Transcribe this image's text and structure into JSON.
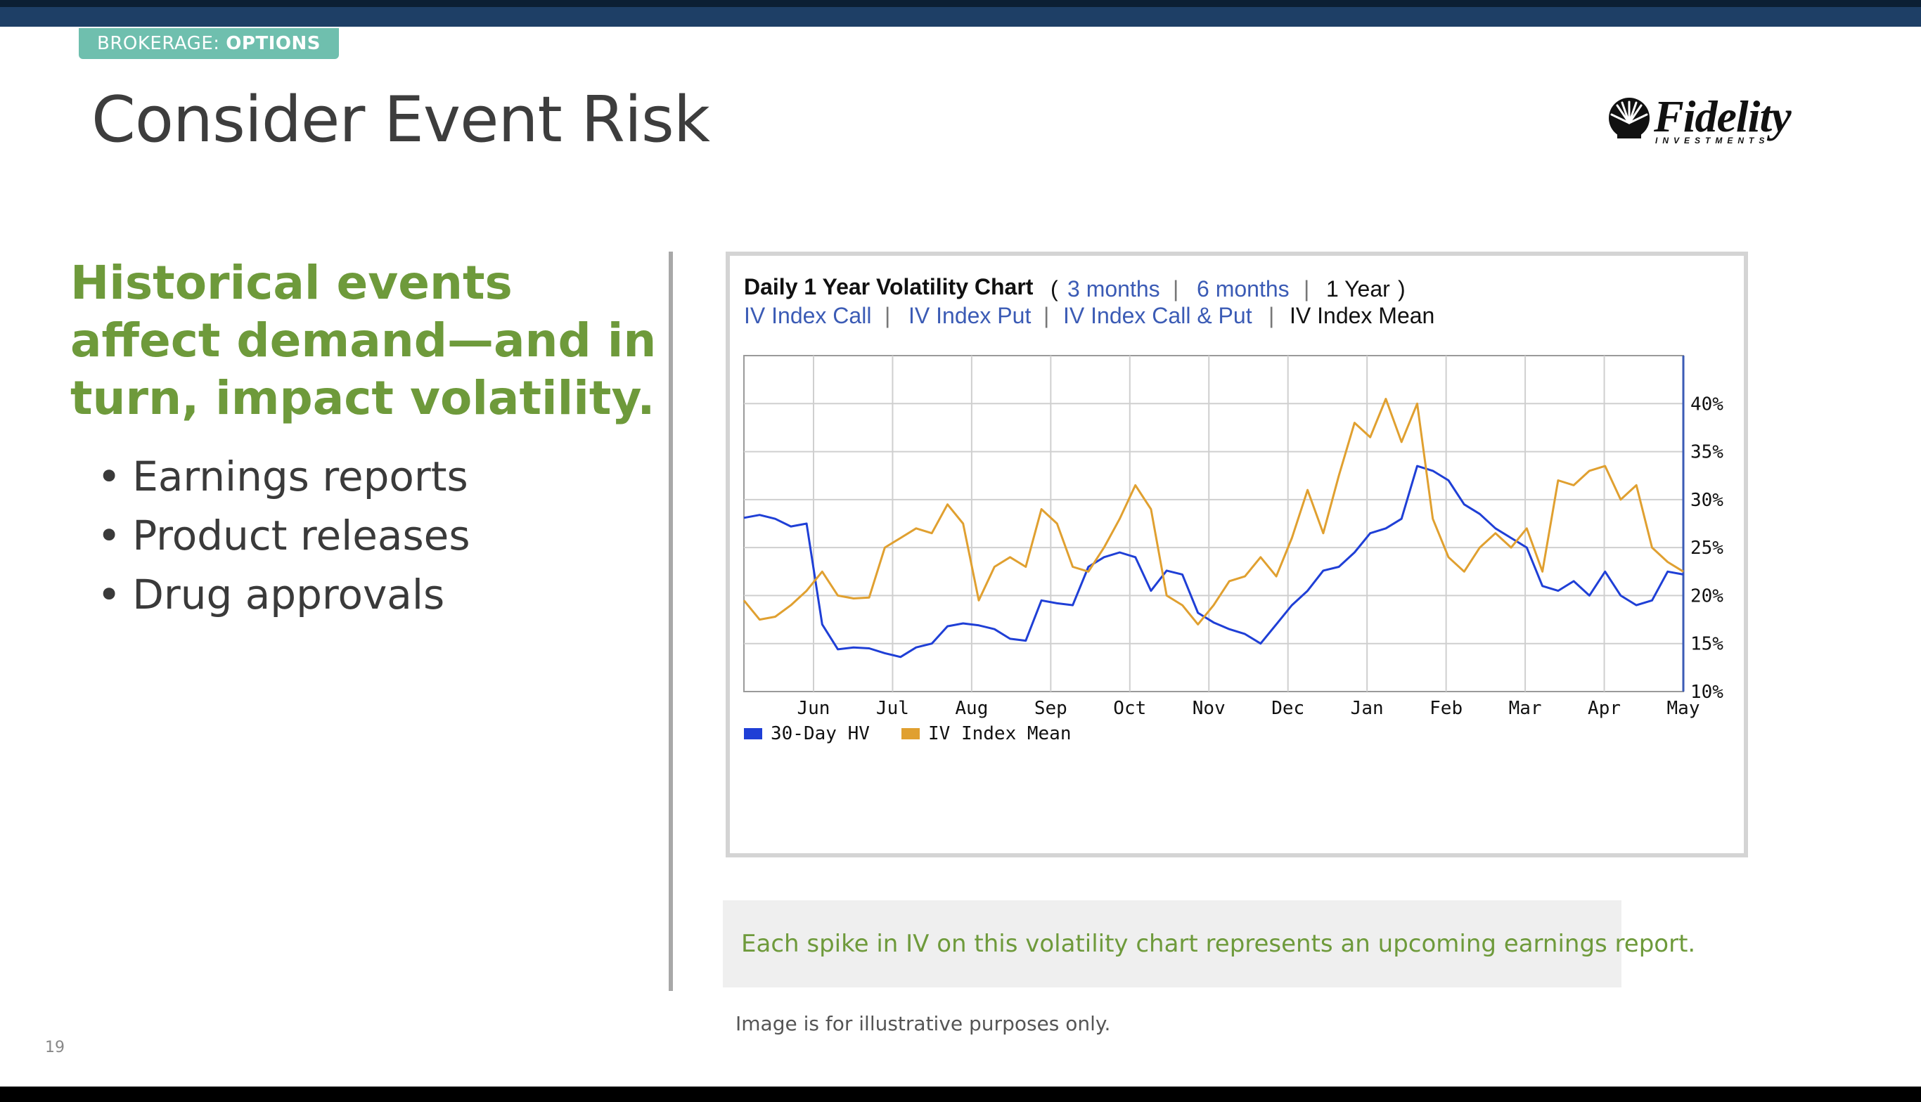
{
  "slide": {
    "badge_prefix": "BROKERAGE: ",
    "badge_strong": "OPTIONS",
    "title": "Consider Event Risk",
    "heading": "Historical events affect demand—and in turn, impact volatility.",
    "bullets": [
      "Earnings reports",
      "Product releases",
      "Drug approvals"
    ],
    "callout": "Each spike in IV on this volatility chart represents an upcoming earnings report.",
    "disclaimer": "Image is for illustrative purposes only.",
    "page_number": "19",
    "logo": {
      "wordmark": "Fidelity",
      "subtext": "INVESTMENTS",
      "icon": "fidelity-starburst-icon"
    }
  },
  "chart_ui": {
    "title": "Daily 1 Year Volatility Chart",
    "open_paren": "(",
    "close_paren": ")",
    "range_links": [
      "3 months",
      "6 months",
      "1 Year"
    ],
    "view_links": [
      "IV Index Call",
      "IV Index Put",
      "IV Index Call & Put",
      "IV Index Mean"
    ],
    "separator": "|"
  },
  "colors": {
    "hv": "#1f3fd6",
    "iv": "#e0a030",
    "link": "#3b5bb5",
    "green": "#6e9a3b",
    "navy": "#1e3f66"
  },
  "chart_data": {
    "type": "line",
    "title": "Daily 1 Year Volatility Chart",
    "x": [
      "May",
      "Jun",
      "Jul",
      "Aug",
      "Sep",
      "Oct",
      "Nov",
      "Dec",
      "Jan",
      "Feb",
      "Mar",
      "Apr",
      "May"
    ],
    "y_ticks": [
      "10%",
      "15%",
      "20%",
      "25%",
      "30%",
      "35%",
      "40%"
    ],
    "ylim": [
      10,
      45
    ],
    "y_axis_side": "right",
    "grid": true,
    "legend_position": "bottom-left",
    "series": [
      {
        "name": "30-Day HV",
        "color": "#1f3fd6",
        "points": [
          [
            "May",
            28.1
          ],
          [
            "May",
            28.4
          ],
          [
            "May",
            28.0
          ],
          [
            "May",
            27.2
          ],
          [
            "May",
            27.5
          ],
          [
            "Jun",
            17.0
          ],
          [
            "Jun",
            14.4
          ],
          [
            "Jun",
            14.6
          ],
          [
            "Jun",
            14.5
          ],
          [
            "Jul",
            14.0
          ],
          [
            "Jul",
            13.6
          ],
          [
            "Jul",
            14.6
          ],
          [
            "Jul",
            15.0
          ],
          [
            "Aug",
            16.8
          ],
          [
            "Aug",
            17.1
          ],
          [
            "Aug",
            16.9
          ],
          [
            "Aug",
            16.5
          ],
          [
            "Aug",
            15.5
          ],
          [
            "Sep",
            15.3
          ],
          [
            "Sep",
            19.5
          ],
          [
            "Sep",
            19.2
          ],
          [
            "Sep",
            19.0
          ],
          [
            "Sep",
            23.0
          ],
          [
            "Oct",
            24.0
          ],
          [
            "Oct",
            24.5
          ],
          [
            "Oct",
            24.0
          ],
          [
            "Oct",
            20.5
          ],
          [
            "Oct",
            22.6
          ],
          [
            "Nov",
            22.2
          ],
          [
            "Nov",
            18.2
          ],
          [
            "Nov",
            17.2
          ],
          [
            "Nov",
            16.5
          ],
          [
            "Nov",
            16.0
          ],
          [
            "Dec",
            15.0
          ],
          [
            "Dec",
            17.0
          ],
          [
            "Dec",
            19.0
          ],
          [
            "Dec",
            20.5
          ],
          [
            "Dec",
            22.6
          ],
          [
            "Dec",
            23.0
          ],
          [
            "Jan",
            24.5
          ],
          [
            "Jan",
            26.5
          ],
          [
            "Jan",
            27.0
          ],
          [
            "Jan",
            28.0
          ],
          [
            "Jan",
            33.5
          ],
          [
            "Feb",
            33.0
          ],
          [
            "Feb",
            32.0
          ],
          [
            "Feb",
            29.5
          ],
          [
            "Feb",
            28.5
          ],
          [
            "Mar",
            27.0
          ],
          [
            "Mar",
            26.0
          ],
          [
            "Mar",
            25.0
          ],
          [
            "Mar",
            21.0
          ],
          [
            "Mar",
            20.5
          ],
          [
            "Apr",
            21.5
          ],
          [
            "Apr",
            20.0
          ],
          [
            "Apr",
            22.5
          ],
          [
            "Apr",
            20.0
          ],
          [
            "Apr",
            19.0
          ],
          [
            "May",
            19.5
          ],
          [
            "May",
            22.5
          ],
          [
            "May",
            22.2
          ]
        ]
      },
      {
        "name": "IV Index Mean",
        "color": "#e0a030",
        "points": [
          [
            "May",
            19.5
          ],
          [
            "May",
            17.5
          ],
          [
            "May",
            17.8
          ],
          [
            "May",
            19.0
          ],
          [
            "May",
            20.5
          ],
          [
            "Jun",
            22.5
          ],
          [
            "Jun",
            20.0
          ],
          [
            "Jun",
            19.7
          ],
          [
            "Jun",
            19.8
          ],
          [
            "Jul",
            25.0
          ],
          [
            "Jul",
            26.0
          ],
          [
            "Jul",
            27.0
          ],
          [
            "Jul",
            26.5
          ],
          [
            "Jul",
            29.5
          ],
          [
            "Aug",
            27.5
          ],
          [
            "Aug",
            19.5
          ],
          [
            "Aug",
            23.0
          ],
          [
            "Aug",
            24.0
          ],
          [
            "Aug",
            23.0
          ],
          [
            "Sep",
            29.0
          ],
          [
            "Sep",
            27.5
          ],
          [
            "Sep",
            23.0
          ],
          [
            "Sep",
            22.5
          ],
          [
            "Sep",
            25.0
          ],
          [
            "Oct",
            28.0
          ],
          [
            "Oct",
            31.5
          ],
          [
            "Oct",
            29.0
          ],
          [
            "Oct",
            20.0
          ],
          [
            "Oct",
            19.0
          ],
          [
            "Nov",
            17.0
          ],
          [
            "Nov",
            19.0
          ],
          [
            "Nov",
            21.5
          ],
          [
            "Nov",
            22.0
          ],
          [
            "Dec",
            24.0
          ],
          [
            "Dec",
            22.0
          ],
          [
            "Dec",
            26.0
          ],
          [
            "Dec",
            31.0
          ],
          [
            "Dec",
            26.5
          ],
          [
            "Dec",
            32.5
          ],
          [
            "Jan",
            38.0
          ],
          [
            "Jan",
            36.5
          ],
          [
            "Jan",
            40.5
          ],
          [
            "Jan",
            36.0
          ],
          [
            "Jan",
            40.0
          ],
          [
            "Feb",
            28.0
          ],
          [
            "Feb",
            24.0
          ],
          [
            "Feb",
            22.5
          ],
          [
            "Feb",
            25.0
          ],
          [
            "Mar",
            26.5
          ],
          [
            "Mar",
            25.0
          ],
          [
            "Mar",
            27.0
          ],
          [
            "Mar",
            22.5
          ],
          [
            "Mar",
            32.0
          ],
          [
            "Apr",
            31.5
          ],
          [
            "Apr",
            33.0
          ],
          [
            "Apr",
            33.5
          ],
          [
            "Apr",
            30.0
          ],
          [
            "Apr",
            31.5
          ],
          [
            "May",
            25.0
          ],
          [
            "May",
            23.5
          ],
          [
            "May",
            22.5
          ]
        ]
      }
    ]
  }
}
